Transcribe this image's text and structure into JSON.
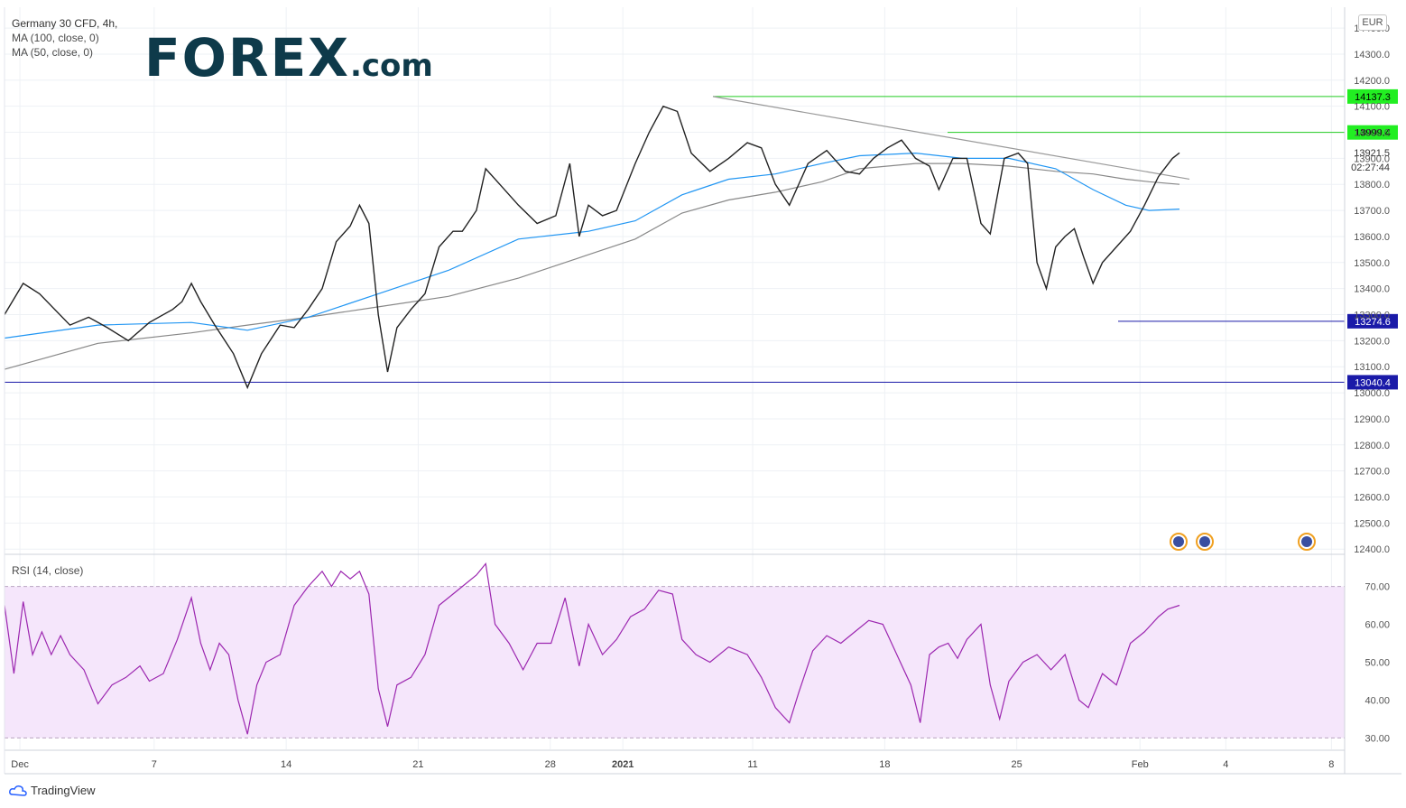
{
  "instrument": {
    "title": "Germany 30 CFD, 4h,",
    "ma100_label": "MA (100, close, 0)",
    "ma50_label": "MA (50, close, 0)"
  },
  "branding": {
    "logo_main": "FOREX",
    "logo_suffix": ".com",
    "footer": "TradingView"
  },
  "currency": "EUR",
  "chart_data": [
    {
      "type": "line",
      "panel": "price",
      "y_ticks": [
        "14400.0",
        "14300.0",
        "14200.0",
        "14100.0",
        "14000.0",
        "13900.0",
        "13800.0",
        "13700.0",
        "13600.0",
        "13500.0",
        "13400.0",
        "13300.0",
        "13200.0",
        "13100.0",
        "13000.0",
        "12900.0",
        "12800.0",
        "12700.0",
        "12600.0",
        "12500.0",
        "12400.0"
      ],
      "ylim": [
        12380,
        14480
      ],
      "x_ticks": [
        "Dec",
        "7",
        "14",
        "21",
        "28",
        "2021",
        "11",
        "18",
        "25",
        "Feb",
        "4",
        "8"
      ],
      "price_labels": {
        "last": "13921.5",
        "countdown": "02:27:44",
        "resistance_high": "14137.3",
        "resistance_mid": "13999.4",
        "support_recent": "13274.6",
        "support_low": "13040.4"
      },
      "series": [
        {
          "name": "Germany 30 CFD, 4h",
          "color": "#222222",
          "values": [
            [
              0,
              13300
            ],
            [
              8,
              13420
            ],
            [
              15,
              13380
            ],
            [
              28,
              13260
            ],
            [
              36,
              13290
            ],
            [
              44,
              13250
            ],
            [
              53,
              13200
            ],
            [
              62,
              13270
            ],
            [
              72,
              13320
            ],
            [
              76,
              13350
            ],
            [
              80,
              13420
            ],
            [
              84,
              13350
            ],
            [
              90,
              13260
            ],
            [
              98,
              13150
            ],
            [
              104,
              13020
            ],
            [
              110,
              13150
            ],
            [
              118,
              13260
            ],
            [
              124,
              13250
            ],
            [
              130,
              13320
            ],
            [
              136,
              13400
            ],
            [
              142,
              13580
            ],
            [
              148,
              13640
            ],
            [
              152,
              13720
            ],
            [
              156,
              13650
            ],
            [
              160,
              13300
            ],
            [
              164,
              13080
            ],
            [
              168,
              13250
            ],
            [
              174,
              13320
            ],
            [
              180,
              13380
            ],
            [
              186,
              13560
            ],
            [
              192,
              13620
            ],
            [
              196,
              13620
            ],
            [
              202,
              13700
            ],
            [
              206,
              13860
            ],
            [
              212,
              13800
            ],
            [
              220,
              13720
            ],
            [
              228,
              13650
            ],
            [
              236,
              13680
            ],
            [
              242,
              13880
            ],
            [
              246,
              13600
            ],
            [
              250,
              13720
            ],
            [
              256,
              13680
            ],
            [
              262,
              13700
            ],
            [
              270,
              13880
            ],
            [
              276,
              14000
            ],
            [
              282,
              14100
            ],
            [
              288,
              14080
            ],
            [
              294,
              13920
            ],
            [
              302,
              13850
            ],
            [
              310,
              13900
            ],
            [
              318,
              13960
            ],
            [
              324,
              13940
            ],
            [
              330,
              13800
            ],
            [
              336,
              13720
            ],
            [
              344,
              13880
            ],
            [
              352,
              13930
            ],
            [
              360,
              13850
            ],
            [
              366,
              13840
            ],
            [
              372,
              13900
            ],
            [
              378,
              13940
            ],
            [
              384,
              13970
            ],
            [
              390,
              13900
            ],
            [
              396,
              13870
            ],
            [
              400,
              13780
            ],
            [
              406,
              13900
            ],
            [
              412,
              13900
            ],
            [
              418,
              13650
            ],
            [
              422,
              13610
            ],
            [
              428,
              13900
            ],
            [
              434,
              13920
            ],
            [
              438,
              13880
            ],
            [
              442,
              13500
            ],
            [
              446,
              13400
            ],
            [
              450,
              13560
            ],
            [
              454,
              13600
            ],
            [
              458,
              13630
            ],
            [
              462,
              13520
            ],
            [
              466,
              13420
            ],
            [
              470,
              13500
            ],
            [
              476,
              13560
            ],
            [
              482,
              13620
            ],
            [
              488,
              13720
            ],
            [
              494,
              13830
            ],
            [
              500,
              13900
            ],
            [
              503,
              13921
            ]
          ]
        },
        {
          "name": "MA (50, close, 0)",
          "color": "#2196f3",
          "values": [
            [
              0,
              13210
            ],
            [
              40,
              13260
            ],
            [
              80,
              13270
            ],
            [
              104,
              13240
            ],
            [
              130,
              13290
            ],
            [
              160,
              13380
            ],
            [
              190,
              13470
            ],
            [
              220,
              13590
            ],
            [
              250,
              13620
            ],
            [
              270,
              13660
            ],
            [
              290,
              13760
            ],
            [
              310,
              13820
            ],
            [
              330,
              13840
            ],
            [
              350,
              13880
            ],
            [
              366,
              13910
            ],
            [
              390,
              13920
            ],
            [
              410,
              13900
            ],
            [
              430,
              13900
            ],
            [
              450,
              13860
            ],
            [
              466,
              13780
            ],
            [
              480,
              13720
            ],
            [
              490,
              13700
            ],
            [
              503,
              13705
            ]
          ]
        },
        {
          "name": "MA (100, close, 0)",
          "color": "#888888",
          "values": [
            [
              0,
              13090
            ],
            [
              40,
              13190
            ],
            [
              80,
              13230
            ],
            [
              104,
              13260
            ],
            [
              130,
              13290
            ],
            [
              160,
              13330
            ],
            [
              190,
              13370
            ],
            [
              220,
              13440
            ],
            [
              250,
              13530
            ],
            [
              270,
              13590
            ],
            [
              290,
              13690
            ],
            [
              310,
              13740
            ],
            [
              330,
              13770
            ],
            [
              350,
              13810
            ],
            [
              366,
              13860
            ],
            [
              390,
              13880
            ],
            [
              410,
              13880
            ],
            [
              430,
              13870
            ],
            [
              450,
              13850
            ],
            [
              466,
              13840
            ],
            [
              480,
              13820
            ],
            [
              490,
              13810
            ],
            [
              503,
              13800
            ]
          ]
        }
      ]
    },
    {
      "type": "line",
      "panel": "oscillator",
      "title": "RSI (14, close)",
      "y_ticks": [
        "70.00",
        "60.00",
        "50.00",
        "40.00",
        "30.00"
      ],
      "ylim": [
        27,
        78
      ],
      "band": [
        30,
        70
      ],
      "series": [
        {
          "name": "RSI (14, close)",
          "color": "#9c27b0",
          "values": [
            [
              0,
              65
            ],
            [
              4,
              47
            ],
            [
              8,
              66
            ],
            [
              12,
              52
            ],
            [
              16,
              58
            ],
            [
              20,
              52
            ],
            [
              24,
              57
            ],
            [
              28,
              52
            ],
            [
              34,
              48
            ],
            [
              40,
              39
            ],
            [
              46,
              44
            ],
            [
              52,
              46
            ],
            [
              58,
              49
            ],
            [
              62,
              45
            ],
            [
              68,
              47
            ],
            [
              74,
              56
            ],
            [
              80,
              67
            ],
            [
              84,
              55
            ],
            [
              88,
              48
            ],
            [
              92,
              55
            ],
            [
              96,
              52
            ],
            [
              100,
              40
            ],
            [
              104,
              31
            ],
            [
              108,
              44
            ],
            [
              112,
              50
            ],
            [
              118,
              52
            ],
            [
              124,
              65
            ],
            [
              130,
              70
            ],
            [
              136,
              74
            ],
            [
              140,
              70
            ],
            [
              144,
              74
            ],
            [
              148,
              72
            ],
            [
              152,
              74
            ],
            [
              156,
              68
            ],
            [
              160,
              43
            ],
            [
              164,
              33
            ],
            [
              168,
              44
            ],
            [
              174,
              46
            ],
            [
              180,
              52
            ],
            [
              186,
              65
            ],
            [
              192,
              68
            ],
            [
              196,
              70
            ],
            [
              202,
              73
            ],
            [
              206,
              76
            ],
            [
              210,
              60
            ],
            [
              216,
              55
            ],
            [
              222,
              48
            ],
            [
              228,
              55
            ],
            [
              234,
              55
            ],
            [
              240,
              67
            ],
            [
              246,
              49
            ],
            [
              250,
              60
            ],
            [
              256,
              52
            ],
            [
              262,
              56
            ],
            [
              268,
              62
            ],
            [
              274,
              64
            ],
            [
              280,
              69
            ],
            [
              286,
              68
            ],
            [
              290,
              56
            ],
            [
              296,
              52
            ],
            [
              302,
              50
            ],
            [
              310,
              54
            ],
            [
              318,
              52
            ],
            [
              324,
              46
            ],
            [
              330,
              38
            ],
            [
              336,
              34
            ],
            [
              340,
              42
            ],
            [
              346,
              53
            ],
            [
              352,
              57
            ],
            [
              358,
              55
            ],
            [
              364,
              58
            ],
            [
              370,
              61
            ],
            [
              376,
              60
            ],
            [
              382,
              52
            ],
            [
              388,
              44
            ],
            [
              392,
              34
            ],
            [
              396,
              52
            ],
            [
              400,
              54
            ],
            [
              404,
              55
            ],
            [
              408,
              51
            ],
            [
              412,
              56
            ],
            [
              418,
              60
            ],
            [
              422,
              44
            ],
            [
              426,
              35
            ],
            [
              430,
              45
            ],
            [
              436,
              50
            ],
            [
              442,
              52
            ],
            [
              448,
              48
            ],
            [
              454,
              52
            ],
            [
              460,
              40
            ],
            [
              464,
              38
            ],
            [
              470,
              47
            ],
            [
              476,
              44
            ],
            [
              482,
              55
            ],
            [
              488,
              58
            ],
            [
              494,
              62
            ],
            [
              498,
              64
            ],
            [
              503,
              65
            ]
          ]
        }
      ]
    }
  ]
}
